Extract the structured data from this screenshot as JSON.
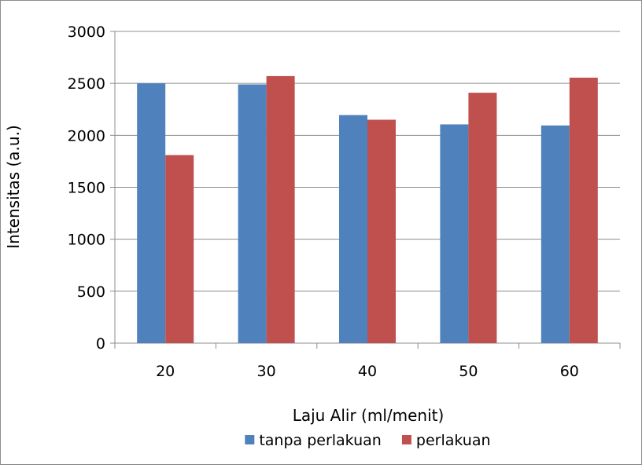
{
  "chart_data": {
    "type": "bar",
    "title": "",
    "xlabel": "Laju Alir (ml/menit)",
    "ylabel": "Intensitas (a.u.)",
    "categories": [
      "20",
      "30",
      "40",
      "50",
      "60"
    ],
    "series": [
      {
        "name": "tanpa perlakuan",
        "color": "#4f81bd",
        "values": [
          2500,
          2490,
          2195,
          2105,
          2095
        ]
      },
      {
        "name": "perlakuan",
        "color": "#c0504d",
        "values": [
          1810,
          2570,
          2150,
          2410,
          2555
        ]
      }
    ],
    "ylim": [
      0,
      3000
    ],
    "yticks": [
      0,
      500,
      1000,
      1500,
      2000,
      2500,
      3000
    ],
    "grid": true,
    "legend": "bottom"
  }
}
